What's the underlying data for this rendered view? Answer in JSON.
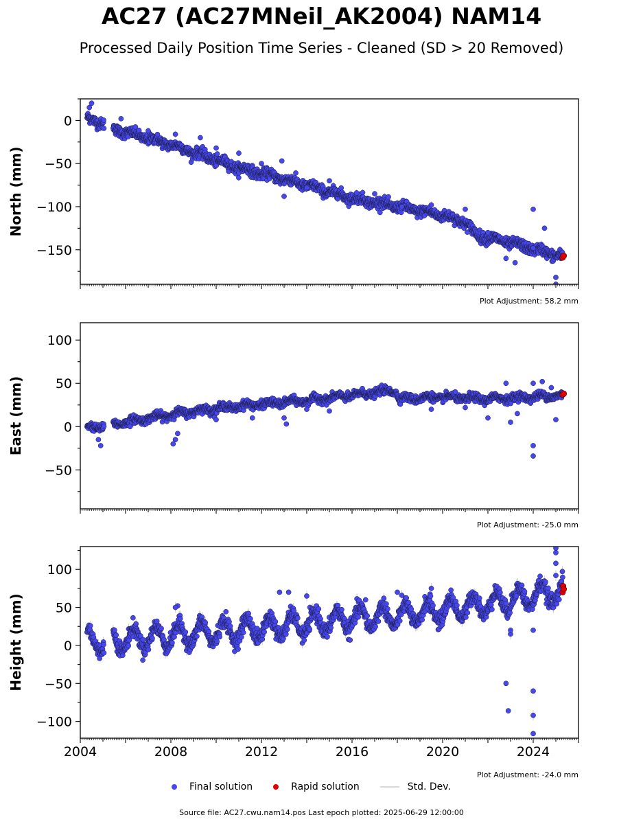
{
  "title": "AC27 (AC27MNeil_AK2004) NAM14",
  "subtitle": "Processed Daily Position Time Series - Cleaned (SD > 20 Removed)",
  "legend": {
    "final_label": "Final solution",
    "rapid_label": "Rapid solution",
    "std_label": "Std. Dev."
  },
  "source_text": "Source file: AC27.cwu.nam14.pos  Last epoch plotted: 2025-06-29 12:00:00",
  "colors": {
    "final": "#4747ee",
    "final_edge": "#1a1a3a",
    "rapid": "#e00000",
    "std": "#cccccc"
  },
  "chart_data": [
    {
      "type": "scatter",
      "ylabel": "North (mm)",
      "adjustment_label": "Plot Adjustment: 58.2 mm",
      "xlim": [
        2004.0,
        2026.0
      ],
      "ylim": [
        -190,
        25
      ],
      "yticks": [
        0,
        -50,
        -100,
        -150
      ],
      "ytick_labels": [
        "0",
        "−50",
        "−100",
        "−150"
      ],
      "trend": [
        [
          2004.3,
          2
        ],
        [
          2005.0,
          -3
        ],
        [
          2005.5,
          -10
        ],
        [
          2008.0,
          -28
        ],
        [
          2011.0,
          -55
        ],
        [
          2013.0,
          -68
        ],
        [
          2016.0,
          -90
        ],
        [
          2018.0,
          -100
        ],
        [
          2020.0,
          -110
        ],
        [
          2021.0,
          -118
        ],
        [
          2021.5,
          -133
        ],
        [
          2023.0,
          -142
        ],
        [
          2025.3,
          -158
        ]
      ],
      "seasonal_amp": 2,
      "scatter_sd": 3,
      "gaps": [
        [
          2005.05,
          2005.45
        ]
      ],
      "outliers": [
        [
          2004.5,
          20
        ],
        [
          2004.4,
          15
        ],
        [
          2005.8,
          2
        ],
        [
          2007.0,
          -12
        ],
        [
          2008.2,
          -16
        ],
        [
          2009.3,
          -20
        ],
        [
          2010.0,
          -32
        ],
        [
          2011.0,
          -38
        ],
        [
          2012.0,
          -50
        ],
        [
          2012.9,
          -47
        ],
        [
          2013.0,
          -88
        ],
        [
          2014.0,
          -78
        ],
        [
          2015.0,
          -70
        ],
        [
          2016.2,
          -84
        ],
        [
          2017.0,
          -85
        ],
        [
          2018.2,
          -100
        ],
        [
          2019.5,
          -98
        ],
        [
          2021.0,
          -103
        ],
        [
          2022.0,
          -130
        ],
        [
          2022.8,
          -160
        ],
        [
          2023.2,
          -165
        ],
        [
          2024.0,
          -103
        ],
        [
          2024.0,
          -148
        ],
        [
          2024.5,
          -125
        ],
        [
          2025.0,
          -182
        ],
        [
          2025.0,
          -190
        ]
      ],
      "rapid": [
        [
          2025.3,
          -159
        ],
        [
          2025.35,
          -157
        ]
      ]
    },
    {
      "type": "scatter",
      "ylabel": "East (mm)",
      "adjustment_label": "Plot Adjustment: -25.0 mm",
      "xlim": [
        2004.0,
        2026.0
      ],
      "ylim": [
        -95,
        120
      ],
      "yticks": [
        100,
        50,
        0,
        -50
      ],
      "ytick_labels": [
        "100",
        "50",
        "0",
        "−50"
      ],
      "trend": [
        [
          2004.3,
          -1
        ],
        [
          2005.0,
          0
        ],
        [
          2005.5,
          3
        ],
        [
          2008.0,
          14
        ],
        [
          2010.0,
          21
        ],
        [
          2012.0,
          26
        ],
        [
          2014.0,
          30
        ],
        [
          2016.0,
          36
        ],
        [
          2017.9,
          42
        ],
        [
          2018.1,
          32
        ],
        [
          2020.0,
          34
        ],
        [
          2022.0,
          32
        ],
        [
          2025.3,
          36
        ]
      ],
      "seasonal_amp": 2,
      "scatter_sd": 2.2,
      "gaps": [
        [
          2005.05,
          2005.45
        ]
      ],
      "outliers": [
        [
          2004.9,
          -22
        ],
        [
          2004.8,
          -15
        ],
        [
          2006.2,
          0
        ],
        [
          2008.1,
          -20
        ],
        [
          2008.2,
          -15
        ],
        [
          2008.3,
          -8
        ],
        [
          2010.0,
          8
        ],
        [
          2011.6,
          10
        ],
        [
          2013.1,
          3
        ],
        [
          2013.0,
          10
        ],
        [
          2014.0,
          20
        ],
        [
          2015.0,
          18
        ],
        [
          2019.5,
          20
        ],
        [
          2021.0,
          22
        ],
        [
          2022.0,
          10
        ],
        [
          2022.8,
          50
        ],
        [
          2023.0,
          5
        ],
        [
          2023.3,
          15
        ],
        [
          2024.0,
          -22
        ],
        [
          2024.0,
          -34
        ],
        [
          2024.0,
          50
        ],
        [
          2024.4,
          52
        ],
        [
          2024.8,
          45
        ],
        [
          2025.0,
          8
        ]
      ],
      "rapid": [
        [
          2025.3,
          37
        ],
        [
          2025.35,
          38
        ]
      ]
    },
    {
      "type": "scatter",
      "ylabel": "Height (mm)",
      "adjustment_label": "Plot Adjustment: -24.0 mm",
      "xlabel_ticks": [
        "2004",
        "2008",
        "2012",
        "2016",
        "2020",
        "2024"
      ],
      "xticks": [
        2004,
        2008,
        2012,
        2016,
        2020,
        2024
      ],
      "xlim": [
        2004.0,
        2026.0
      ],
      "ylim": [
        -122,
        130
      ],
      "yticks": [
        100,
        50,
        0,
        -50,
        -100
      ],
      "ytick_labels": [
        "100",
        "50",
        "0",
        "−50",
        "−100"
      ],
      "trend": [
        [
          2004.3,
          8
        ],
        [
          2005.0,
          5
        ],
        [
          2007.0,
          10
        ],
        [
          2010.0,
          18
        ],
        [
          2013.0,
          25
        ],
        [
          2016.0,
          35
        ],
        [
          2019.0,
          42
        ],
        [
          2022.0,
          55
        ],
        [
          2025.3,
          72
        ]
      ],
      "seasonal_amp": 14,
      "scatter_sd": 5,
      "gaps": [
        [
          2005.05,
          2005.45
        ]
      ],
      "outliers": [
        [
          2008.3,
          52
        ],
        [
          2008.2,
          50
        ],
        [
          2012.8,
          70
        ],
        [
          2013.2,
          70
        ],
        [
          2014.0,
          65
        ],
        [
          2016.6,
          60
        ],
        [
          2018.0,
          70
        ],
        [
          2019.5,
          75
        ],
        [
          2022.8,
          -50
        ],
        [
          2022.9,
          -86
        ],
        [
          2023.0,
          15
        ],
        [
          2023.0,
          20
        ],
        [
          2024.0,
          -60
        ],
        [
          2024.0,
          -92
        ],
        [
          2024.0,
          -116
        ],
        [
          2024.0,
          20
        ],
        [
          2025.0,
          128
        ],
        [
          2025.0,
          122
        ],
        [
          2025.0,
          108
        ],
        [
          2025.0,
          92
        ]
      ],
      "rapid": [
        [
          2025.3,
          70
        ],
        [
          2025.32,
          78
        ],
        [
          2025.35,
          74
        ]
      ]
    }
  ]
}
